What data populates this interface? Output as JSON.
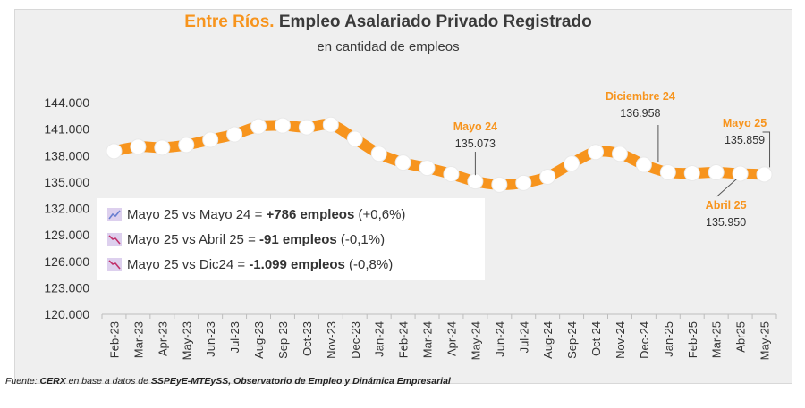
{
  "chart_data": {
    "type": "line",
    "title_highlight": "Entre Ríos.",
    "title": "Empleo Asalariado Privado Registrado",
    "subtitle": "en cantidad de empleos",
    "categories": [
      "Feb-23",
      "Mar-23",
      "Apr-23",
      "May-23",
      "Jun-23",
      "Jul-23",
      "Aug-23",
      "Sep-23",
      "Oct-23",
      "Nov-23",
      "Dec-23",
      "Jan-24",
      "Feb-24",
      "Mar-24",
      "Apr-24",
      "May-24",
      "Jun-24",
      "Jul-24",
      "Aug-24",
      "Sep-24",
      "Oct-24",
      "Nov-24",
      "Dec-24",
      "Jan-25",
      "Feb-25",
      "Mar-25",
      "Abr25",
      "May-25"
    ],
    "values": [
      138500,
      139000,
      138900,
      139200,
      139800,
      140400,
      141300,
      141400,
      141200,
      141500,
      139900,
      138200,
      137200,
      136600,
      135900,
      135073,
      134700,
      134900,
      135600,
      137100,
      138400,
      138200,
      136958,
      136100,
      136000,
      136100,
      135950,
      135859
    ],
    "ylim": [
      120000,
      144000
    ],
    "yticks": [
      "120.000",
      "123.000",
      "126.000",
      "129.000",
      "132.000",
      "135.000",
      "138.000",
      "141.000",
      "144.000"
    ],
    "annotations": [
      {
        "label": "Mayo 24",
        "value": "135.073"
      },
      {
        "label": "Diciembre 24",
        "value": "136.958"
      },
      {
        "label": "Mayo 25",
        "value": "135.859"
      },
      {
        "label": "Abril 25",
        "value": "135.950"
      }
    ],
    "line_color": "#f7941d",
    "marker_color": "#ffffff"
  },
  "legend": [
    {
      "text": "Mayo 25 vs Mayo 24 = ",
      "bold": "+786 empleos",
      "tail": " (+0,6%)",
      "icon": "trend-up-icon"
    },
    {
      "text": "Mayo 25 vs Abril 25 = ",
      "bold": "-91 empleos",
      "tail": " (-0,1%)",
      "icon": "trend-down-icon"
    },
    {
      "text": "Mayo 25 vs Dic24 = ",
      "bold": "-1.099 empleos",
      "tail": " (-0,8%)",
      "icon": "trend-down-icon"
    }
  ],
  "source": {
    "prefix": "Fuente: ",
    "bold1": "CERX",
    "mid": " en base a datos de ",
    "bold2": "SSPEyE-MTEySS, Observatorio de Empleo y Dinámica Empresarial"
  }
}
